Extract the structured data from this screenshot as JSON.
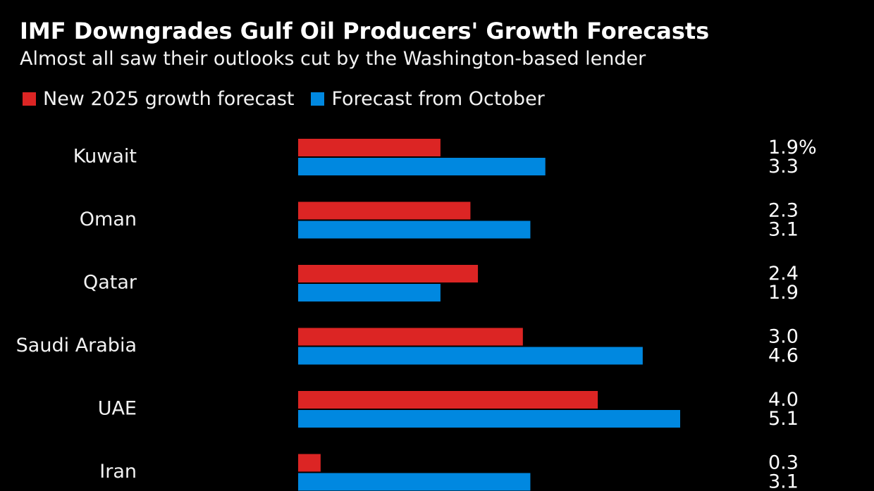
{
  "colors": {
    "background": "#000000",
    "new_forecast": "#dc2524",
    "october_forecast": "#0088e0"
  },
  "chart_data": {
    "type": "bar",
    "orientation": "horizontal",
    "title": "IMF Downgrades Gulf Oil Producers' Growth Forecasts",
    "subtitle": "Almost all saw their outlooks cut by the Washington-based lender",
    "categories": [
      "Kuwait",
      "Oman",
      "Qatar",
      "Saudi Arabia",
      "UAE",
      "Iran"
    ],
    "series": [
      {
        "name": "New 2025 growth forecast",
        "color": "#dc2524",
        "values": [
          1.9,
          2.3,
          2.4,
          3.0,
          4.0,
          0.3
        ],
        "labels": [
          "1.9%",
          "2.3",
          "2.4",
          "3.0",
          "4.0",
          "0.3"
        ]
      },
      {
        "name": "Forecast from October",
        "color": "#0088e0",
        "values": [
          3.3,
          3.1,
          1.9,
          4.6,
          5.1,
          3.1
        ],
        "labels": [
          "3.3",
          "3.1",
          "1.9",
          "4.6",
          "5.1",
          "3.1"
        ]
      }
    ],
    "xlim": [
      0,
      5.1
    ],
    "grid": false,
    "legend": "top-left"
  }
}
